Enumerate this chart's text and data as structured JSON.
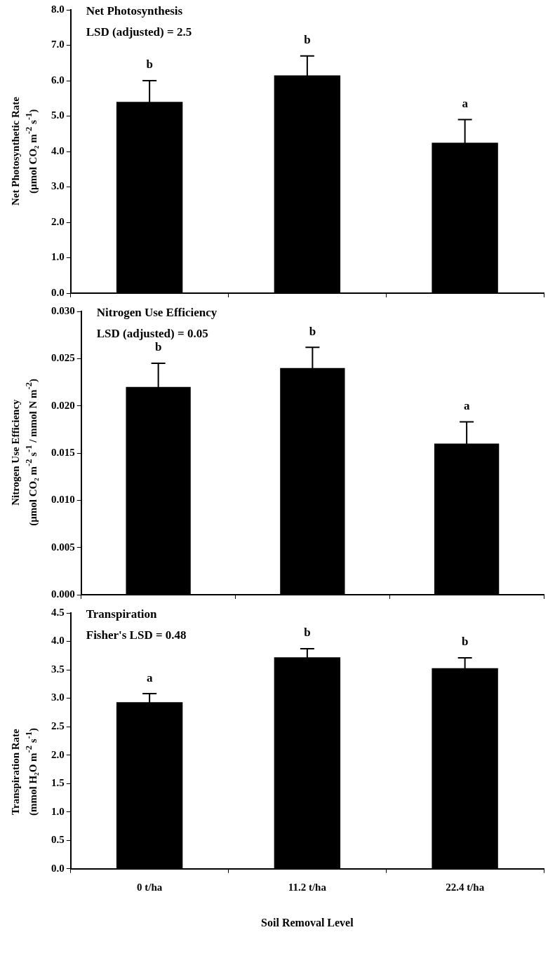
{
  "chart_data": [
    {
      "type": "bar",
      "title": "Net Photosynthesis",
      "subtitle": "LSD (adjusted) = 2.5",
      "ylabel": "Net Photosynthetic Rate\n(µmol CO₂ m$^{-2}$ s$^{-1}$)",
      "categories": [
        null,
        null,
        null
      ],
      "values": [
        5.4,
        6.15,
        4.25
      ],
      "errors": [
        0.6,
        0.55,
        0.65
      ],
      "color": "#000000",
      "ylim": [
        0,
        8
      ],
      "yticks": [
        {
          "value": 0,
          "label": "0.0"
        },
        {
          "value": 1,
          "label": "1.0"
        },
        {
          "value": 2,
          "label": "2.0"
        },
        {
          "value": 3,
          "label": "3.0"
        },
        {
          "value": 4,
          "label": "4.0"
        },
        {
          "value": 5,
          "label": "5.0"
        },
        {
          "value": 6,
          "label": "6.0"
        },
        {
          "value": 7,
          "label": "7.0"
        },
        {
          "value": 8,
          "label": "8.0"
        }
      ],
      "annotations": [
        "b",
        "b",
        "a"
      ],
      "tick_labels": "y"
    },
    {
      "type": "bar",
      "title": "Nitrogen Use Efficiency",
      "subtitle": "LSD (adjusted) = 0.05",
      "ylabel": "Nitrogen Use Efficiency\n(µmol CO₂ m$^{-2}$ s$^{-1}$ / mmol N m$^{-2}$)",
      "categories": [
        null,
        null,
        null
      ],
      "values": [
        0.022,
        0.024,
        0.016
      ],
      "errors": [
        0.0025,
        0.0022,
        0.0023
      ],
      "color": "#000000",
      "ylim": [
        0,
        0.03
      ],
      "yticks": [
        {
          "value": 0,
          "label": "0.000"
        },
        {
          "value": 0.005,
          "label": "0.005"
        },
        {
          "value": 0.01,
          "label": "0.010"
        },
        {
          "value": 0.015,
          "label": "0.015"
        },
        {
          "value": 0.02,
          "label": "0.020"
        },
        {
          "value": 0.025,
          "label": "0.025"
        },
        {
          "value": 0.03,
          "label": "0.030"
        }
      ],
      "annotations": [
        "b",
        "b",
        "a"
      ],
      "tick_labels": "y"
    },
    {
      "type": "bar",
      "title": "Transpiration",
      "subtitle": "Fisher's LSD = 0.48",
      "ylabel": "Transpiration Rate\n(mmol H₂O m$^{-2}$ s$^{-1}$)",
      "xlabel": "Soil Removal Level",
      "categories": [
        "0 t/ha",
        "11.2 t/ha",
        "22.4 t/ha"
      ],
      "values": [
        2.93,
        3.72,
        3.53
      ],
      "errors": [
        0.15,
        0.15,
        0.18
      ],
      "color": "#000000",
      "ylim": [
        0,
        4.5
      ],
      "yticks": [
        {
          "value": 0,
          "label": "0.0"
        },
        {
          "value": 0.5,
          "label": "0.5"
        },
        {
          "value": 1,
          "label": "1.0"
        },
        {
          "value": 1.5,
          "label": "1.5"
        },
        {
          "value": 2,
          "label": "2.0"
        },
        {
          "value": 2.5,
          "label": "2.5"
        },
        {
          "value": 3,
          "label": "3.0"
        },
        {
          "value": 3.5,
          "label": "3.5"
        },
        {
          "value": 4,
          "label": "4.0"
        },
        {
          "value": 4.5,
          "label": "4.5"
        }
      ],
      "annotations": [
        "a",
        "b",
        "b"
      ]
    }
  ]
}
